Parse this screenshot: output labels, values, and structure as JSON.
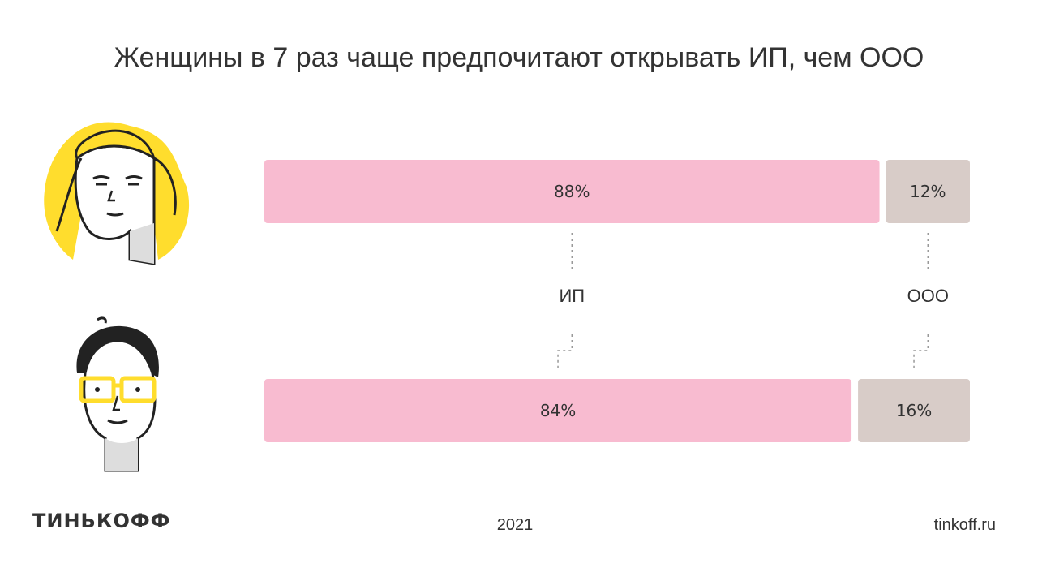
{
  "title": "Женщины в 7 раз чаще предпочитают открывать ИП, чем ООО",
  "chart_data": {
    "type": "bar",
    "orientation": "horizontal",
    "stacked": true,
    "unit": "%",
    "categories": [
      "ИП",
      "ООО"
    ],
    "rows": [
      {
        "icon": "woman-avatar-icon",
        "values": [
          88,
          12
        ],
        "labels": [
          "88%",
          "12%"
        ]
      },
      {
        "icon": "man-avatar-icon",
        "values": [
          84,
          16
        ],
        "labels": [
          "84%",
          "16%"
        ]
      }
    ],
    "colors": {
      "ИП": "#f8bbd0",
      "ООО": "#d8ccc8"
    }
  },
  "footer": {
    "logo": "ТИНЬКОФФ",
    "year": "2021",
    "site": "tinkoff.ru"
  }
}
